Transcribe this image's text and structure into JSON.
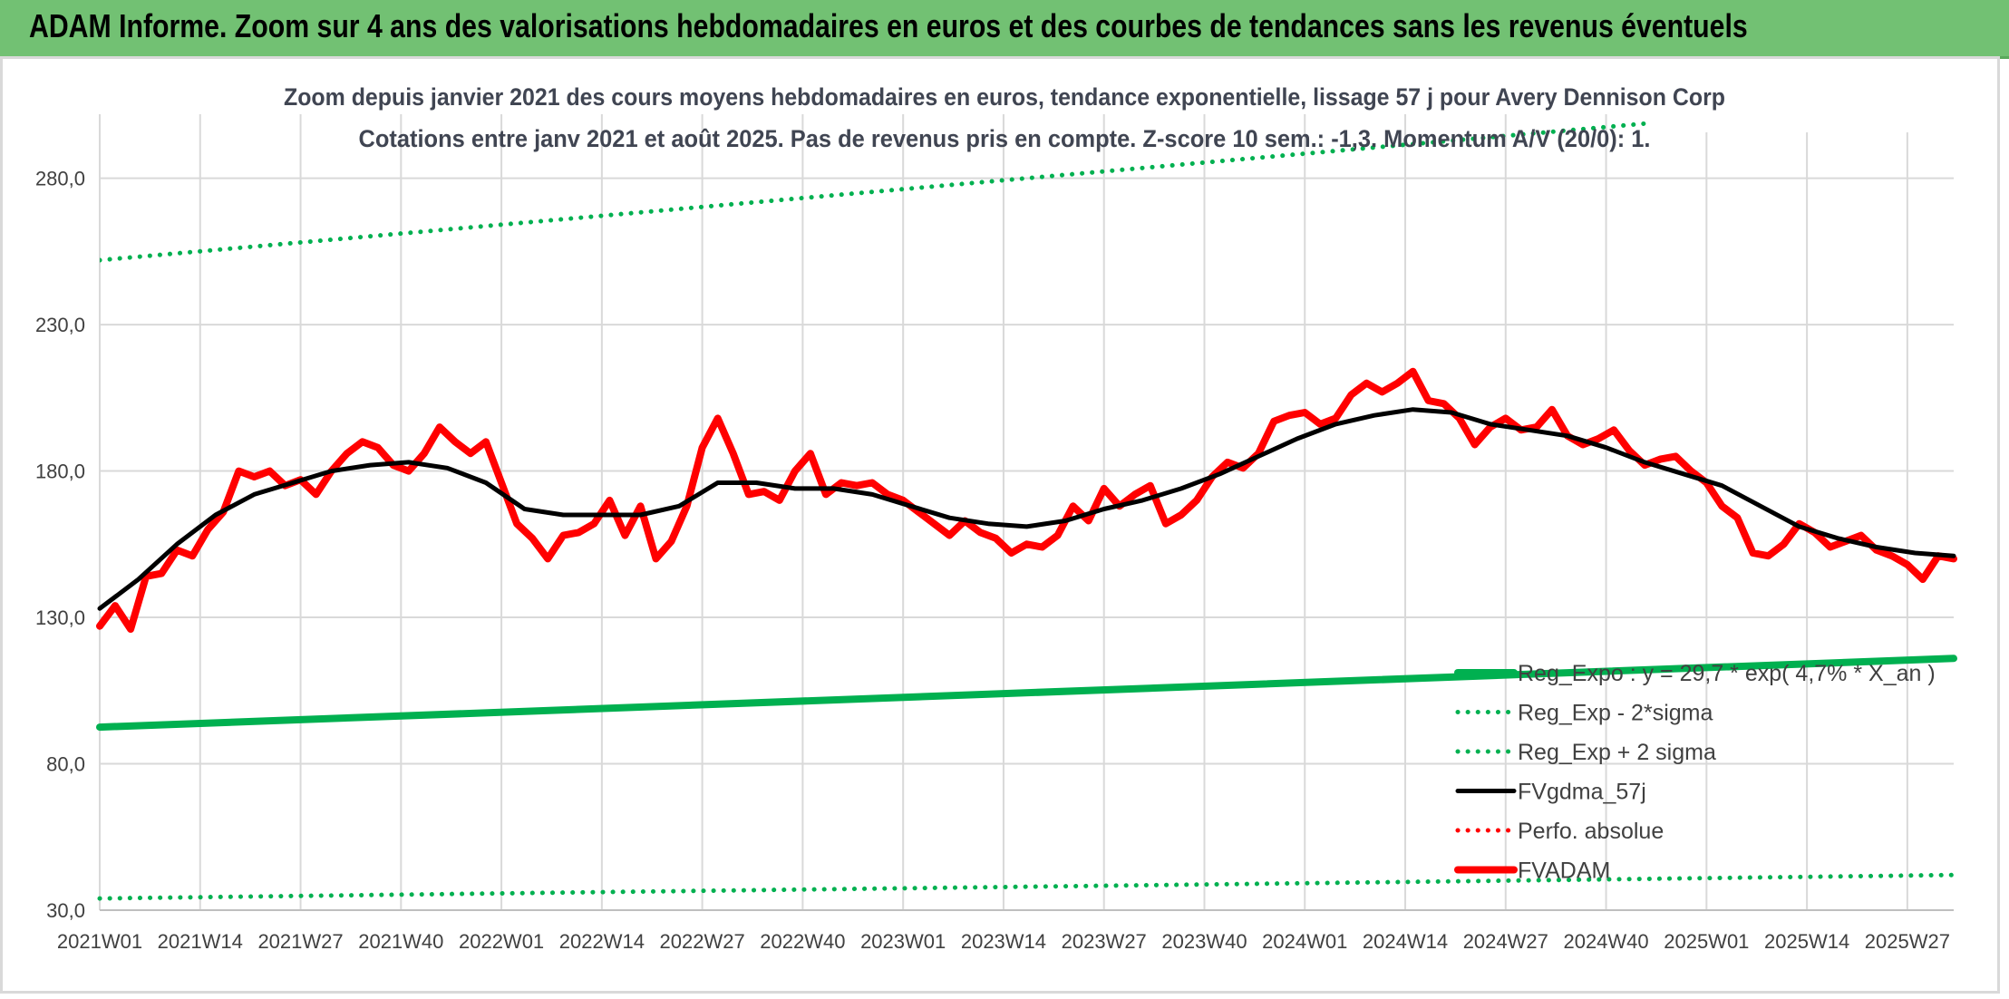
{
  "banner": {
    "title": "ADAM Informe. Zoom sur 4 ans des valorisations hebdomadaires en euros et des courbes de tendances sans les revenus éventuels"
  },
  "colors": {
    "banner_bg": "#72c173",
    "green": "#00b050",
    "red": "#ff0000",
    "black": "#000000",
    "grid": "#d9d9d9"
  },
  "chart_data": {
    "type": "line",
    "title": "Zoom depuis janvier 2021 des cours moyens hebdomadaires en euros, tendance exponentielle, lissage 57 j pour Avery Dennison Corp",
    "subtitle": "Cotations entre janv 2021 et août 2025. Pas de revenus pris en compte. Z-score 10 sem.: -1,3. Momentum A/V (20/0): 1.",
    "xlabel": "",
    "ylabel": "",
    "ylim": [
      30,
      300
    ],
    "y_ticks": [
      "30,0",
      "80,0",
      "130,0",
      "180,0",
      "230,0",
      "280,0"
    ],
    "x_ticks": [
      "2021W01",
      "2021W14",
      "2021W27",
      "2021W40",
      "2022W01",
      "2022W14",
      "2022W27",
      "2022W40",
      "2023W01",
      "2023W14",
      "2023W27",
      "2023W40",
      "2024W01",
      "2024W14",
      "2024W27",
      "2024W40",
      "2025W01",
      "2025W14",
      "2025W27"
    ],
    "weeks_total": 241,
    "grid": true,
    "legend_position": "lower-right",
    "series": [
      {
        "name": "Reg_Expo : y = 29,7 * exp( 4,7% * X_an )",
        "style": "thick-solid",
        "color": "#00b050",
        "x": [
          0,
          240
        ],
        "values": [
          92.5,
          116
        ]
      },
      {
        "name": "Reg_Exp - 2*sigma",
        "style": "dotted",
        "color": "#00b050",
        "x": [
          0,
          240
        ],
        "values": [
          34,
          42
        ]
      },
      {
        "name": "Reg_Exp + 2 sigma",
        "style": "dotted",
        "color": "#00b050",
        "x": [
          0,
          240
        ],
        "values": [
          252,
          308
        ]
      },
      {
        "name": "FVgdma_57j",
        "style": "solid",
        "color": "#000000",
        "x": [
          0,
          5,
          10,
          15,
          20,
          25,
          30,
          35,
          40,
          45,
          50,
          55,
          60,
          65,
          70,
          75,
          80,
          85,
          90,
          95,
          100,
          105,
          110,
          115,
          120,
          125,
          130,
          135,
          140,
          145,
          150,
          155,
          160,
          165,
          170,
          175,
          180,
          185,
          190,
          195,
          200,
          205,
          210,
          215,
          220,
          225,
          230,
          235,
          240
        ],
        "values": [
          133,
          143,
          155,
          165,
          172,
          176,
          180,
          182,
          183,
          181,
          176,
          167,
          165,
          165,
          165,
          168,
          176,
          176,
          174,
          174,
          172,
          168,
          164,
          162,
          161,
          163,
          167,
          170,
          174,
          179,
          185,
          191,
          196,
          199,
          201,
          200,
          196,
          194,
          192,
          188,
          183,
          179,
          175,
          168,
          161,
          157,
          154,
          152,
          151
        ]
      },
      {
        "name": "Perfo. absolue",
        "style": "dotted",
        "color": "#ff0000",
        "x": [],
        "values": []
      },
      {
        "name": "FVADAM",
        "style": "thick-solid",
        "color": "#ff0000",
        "x": [
          0,
          2,
          4,
          6,
          8,
          10,
          12,
          14,
          16,
          18,
          20,
          22,
          24,
          26,
          28,
          30,
          32,
          34,
          36,
          38,
          40,
          42,
          44,
          46,
          48,
          50,
          52,
          54,
          56,
          58,
          60,
          62,
          64,
          66,
          68,
          70,
          72,
          74,
          76,
          78,
          80,
          82,
          84,
          86,
          88,
          90,
          92,
          94,
          96,
          98,
          100,
          102,
          104,
          106,
          108,
          110,
          112,
          114,
          116,
          118,
          120,
          122,
          124,
          126,
          128,
          130,
          132,
          134,
          136,
          138,
          140,
          142,
          144,
          146,
          148,
          150,
          152,
          154,
          156,
          158,
          160,
          162,
          164,
          166,
          168,
          170,
          172,
          174,
          176,
          178,
          180,
          182,
          184,
          186,
          188,
          190,
          192,
          194,
          196,
          198,
          200,
          202,
          204,
          206,
          208,
          210,
          212,
          214,
          216,
          218,
          220,
          222,
          224,
          226,
          228,
          230,
          232,
          234,
          236,
          238,
          240
        ],
        "values": [
          127,
          134,
          126,
          144,
          145,
          153,
          151,
          160,
          166,
          180,
          178,
          180,
          175,
          177,
          172,
          180,
          186,
          190,
          188,
          182,
          180,
          186,
          195,
          190,
          186,
          190,
          176,
          162,
          157,
          150,
          158,
          159,
          162,
          170,
          158,
          168,
          150,
          156,
          168,
          188,
          198,
          186,
          172,
          173,
          170,
          180,
          186,
          172,
          176,
          175,
          176,
          172,
          170,
          166,
          162,
          158,
          163,
          159,
          157,
          152,
          155,
          154,
          158,
          168,
          163,
          174,
          168,
          172,
          175,
          162,
          165,
          170,
          178,
          183,
          181,
          186,
          197,
          199,
          200,
          196,
          198,
          206,
          210,
          207,
          210,
          214,
          204,
          203,
          198,
          189,
          195,
          198,
          194,
          195,
          201,
          192,
          189,
          191,
          194,
          187,
          182,
          184,
          185,
          180,
          176,
          168,
          164,
          152,
          151,
          155,
          162,
          159,
          154,
          156,
          158,
          153,
          151,
          148,
          143,
          151,
          150
        ]
      }
    ]
  }
}
